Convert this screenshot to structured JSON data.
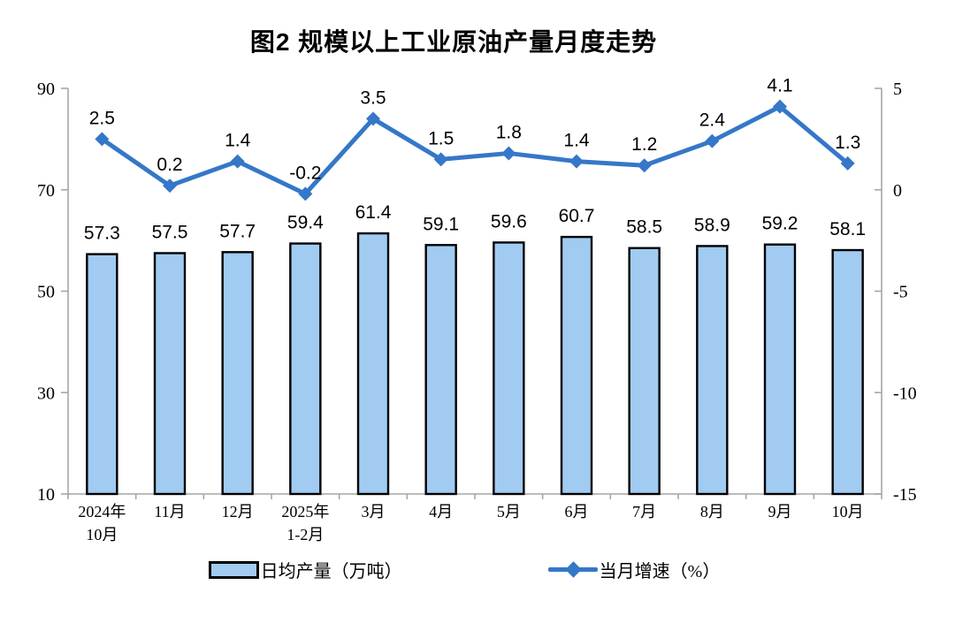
{
  "chart_data": {
    "type": "bar+line",
    "title": "图2 规模以上工业原油产量月度走势",
    "categories": [
      "2024年\n10月",
      "11月",
      "12月",
      "2025年\n1-2月",
      "3月",
      "4月",
      "5月",
      "6月",
      "7月",
      "8月",
      "9月",
      "10月"
    ],
    "series": [
      {
        "name": "日均产量（万吨）",
        "type": "bar",
        "axis": "left",
        "values": [
          57.3,
          57.5,
          57.7,
          59.4,
          61.4,
          59.1,
          59.6,
          60.7,
          58.5,
          58.9,
          59.2,
          58.1
        ]
      },
      {
        "name": "当月增速（%）",
        "type": "line",
        "axis": "right",
        "values": [
          2.5,
          0.2,
          1.4,
          -0.2,
          3.5,
          1.5,
          1.8,
          1.4,
          1.2,
          2.4,
          4.1,
          1.3
        ]
      }
    ],
    "left_axis": {
      "min": 10,
      "max": 90,
      "ticks": [
        10,
        30,
        50,
        70,
        90
      ]
    },
    "right_axis": {
      "min": -15,
      "max": 5,
      "ticks": [
        -15,
        -10,
        -5,
        0,
        5
      ]
    },
    "colors": {
      "bar_fill": "#A2CBF2",
      "bar_border": "#000000",
      "line": "#3577C8",
      "axis": "#A6A6A6",
      "text": "#000000"
    },
    "grid": false,
    "legend_position": "bottom",
    "data_labels": true
  }
}
